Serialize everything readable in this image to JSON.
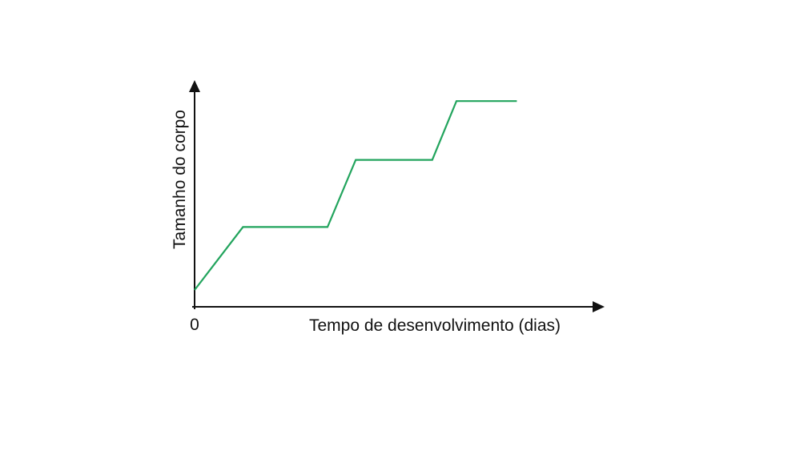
{
  "chart_data": {
    "type": "line",
    "title": "",
    "xlabel": "Tempo de desenvolvimento (dias)",
    "ylabel": "Tamanho do corpo",
    "origin_label": "0",
    "xlim": [
      0,
      10
    ],
    "ylim": [
      0,
      10
    ],
    "grid": false,
    "legend": "none",
    "axis_color": "#111111",
    "line_color": "#22a45d",
    "series": [
      {
        "x": [
          0,
          1.2,
          3.3,
          4.0,
          5.9,
          6.5,
          8.0
        ],
        "y": [
          0.8,
          3.8,
          3.8,
          7.0,
          7.0,
          9.8,
          9.8
        ]
      }
    ]
  }
}
